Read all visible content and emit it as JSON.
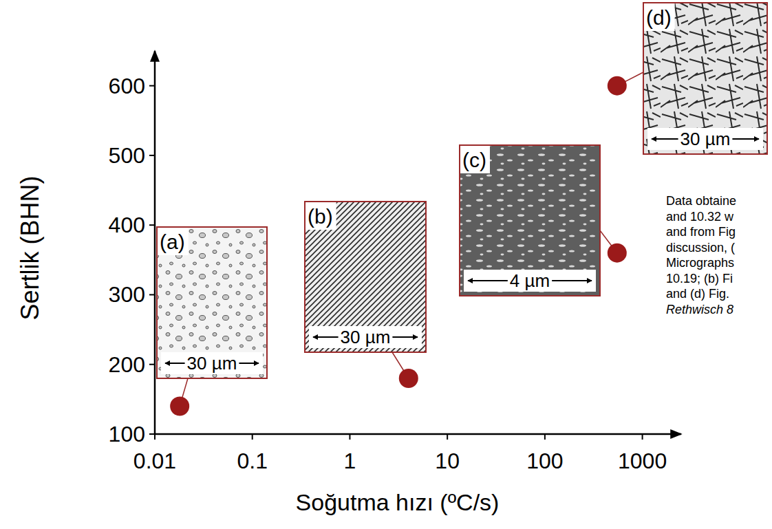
{
  "chart_data": {
    "type": "scatter",
    "x_label": "Soğutma hızı (ºC/s)",
    "y_label": "Sertlik (BHN)",
    "x": [
      0.018,
      4,
      550,
      550
    ],
    "values": [
      140,
      180,
      360,
      600
    ],
    "color": "#9b1a1a",
    "marker": "circle",
    "log": "x",
    "grid": false,
    "xlim": [
      0.01,
      2500
    ],
    "ylim": [
      100,
      650
    ],
    "xticks": [
      0.01,
      0.1,
      1,
      10,
      100,
      1000
    ],
    "yticks": [
      100,
      200,
      300,
      400,
      500,
      600
    ],
    "point_labels": [
      "(a)",
      "(b)",
      "(c)",
      "(d)"
    ],
    "scale_labels": [
      "30 µm",
      "30 µm",
      "4 µm",
      "30 µm"
    ],
    "caption": [
      "Data obtaine",
      "and 10.32 w",
      "and from Fig",
      "discussion, (",
      "Micrographs",
      "10.19; (b) Fi",
      "and (d) Fig."
    ],
    "caption_source": "Rethwisch 8"
  }
}
